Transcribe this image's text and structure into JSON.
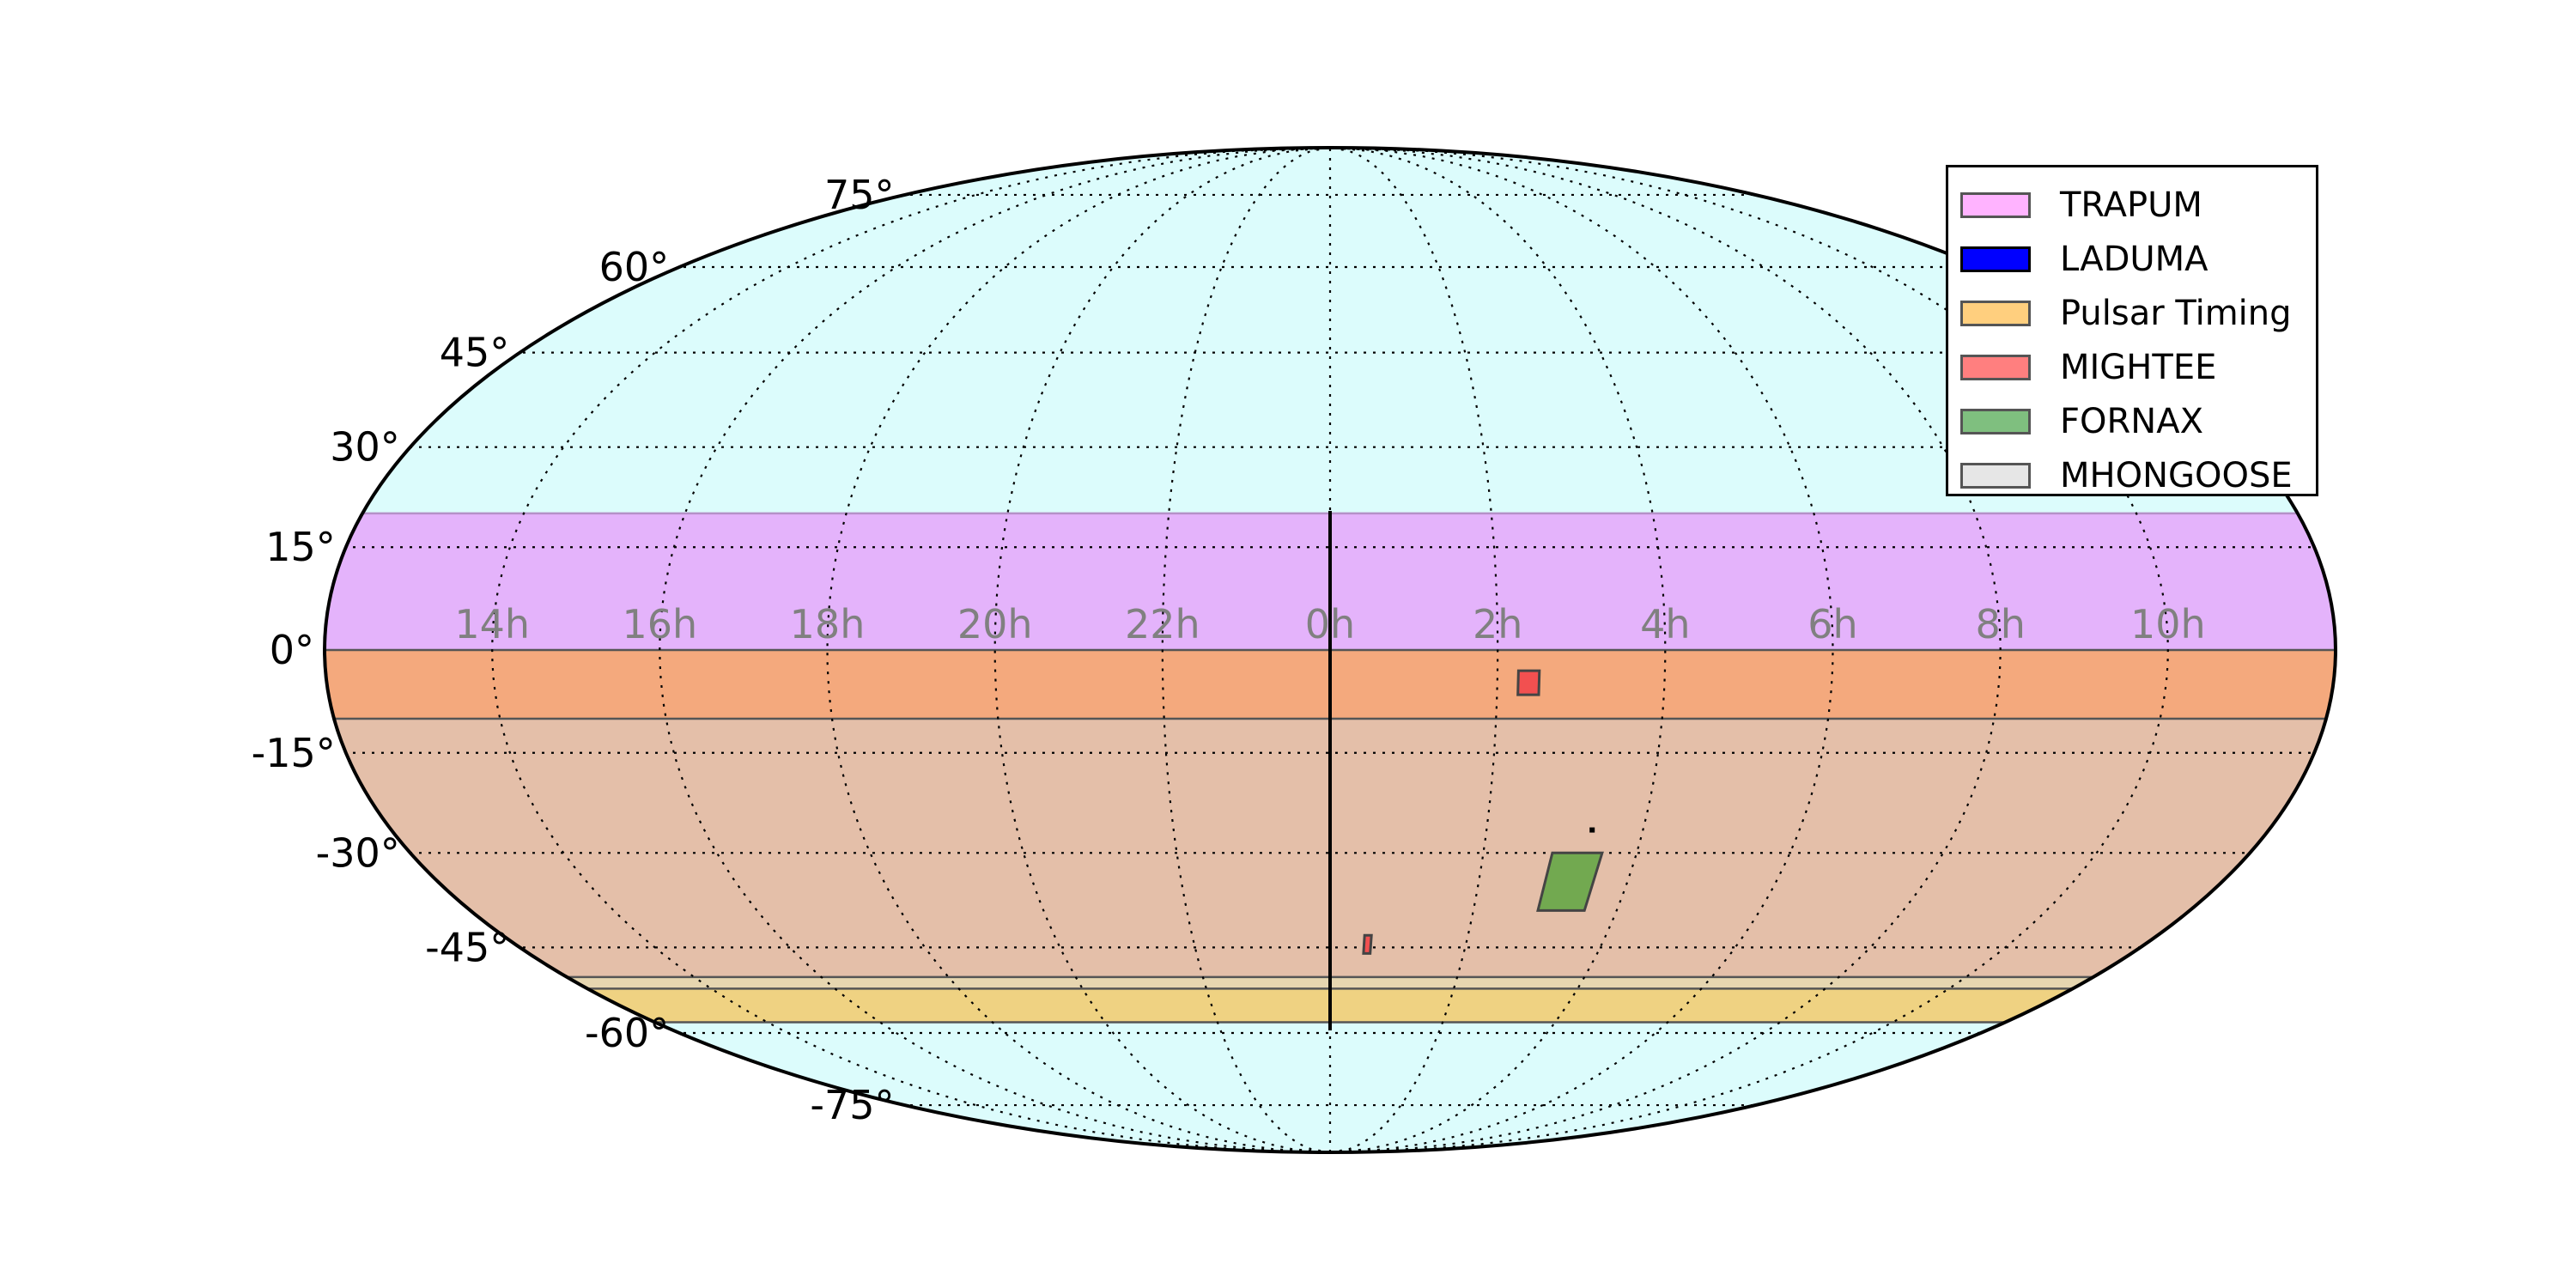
{
  "chart_data": {
    "type": "map",
    "projection": "mollweide",
    "sky_color": "#dcfcfc",
    "dec_ticks": [
      "75°",
      "60°",
      "45°",
      "30°",
      "15°",
      "0°",
      "-15°",
      "-30°",
      "-45°",
      "-60°",
      "-75°"
    ],
    "ra_ticks": [
      "14h",
      "16h",
      "18h",
      "20h",
      "22h",
      "0h",
      "2h",
      "4h",
      "6h",
      "8h",
      "10h"
    ],
    "surveys": [
      {
        "name": "TRAPUM",
        "color": "#ffb3ff"
      },
      {
        "name": "LADUMA",
        "color": "#0000ff"
      },
      {
        "name": "Pulsar Timing",
        "color": "#ffcf7e"
      },
      {
        "name": "MIGHTEE",
        "color": "#ff7f7f"
      },
      {
        "name": "FORNAX",
        "color": "#7fbf7f"
      },
      {
        "name": "MHONGOOSE",
        "color": "#e6e6e6"
      }
    ],
    "bands": [
      {
        "survey": "TRAPUM",
        "dec_min": 0,
        "dec_max": 20,
        "color": "#e4b3fb"
      },
      {
        "survey": "Pulsar Timing",
        "dec_min": -10,
        "dec_max": 0,
        "color": "#f4a97d"
      },
      {
        "survey": "Pulsar Timing",
        "dec_min": -50,
        "dec_max": -10,
        "color": "#e4bfa9"
      },
      {
        "survey": "MHONGOOSE",
        "dec_min": -52,
        "dec_max": -50,
        "color": "#e6d6b0"
      },
      {
        "survey": "Pulsar Timing",
        "dec_min": -58,
        "dec_max": -52,
        "color": "#efd282"
      }
    ],
    "regions": [
      {
        "survey": "MIGHTEE",
        "ra_h": [
          2.25,
          2.5
        ],
        "dec": [
          -6.5,
          -3
        ],
        "color": "#f25050"
      },
      {
        "survey": "MIGHTEE",
        "ra_h": [
          0.5,
          0.6
        ],
        "dec": [
          -46,
          -43
        ],
        "color": "#f25050"
      },
      {
        "survey": "FORNAX",
        "ra_h": [
          2.9,
          3.55
        ],
        "dec": [
          -39,
          -30
        ],
        "color": "#72a950"
      }
    ]
  }
}
